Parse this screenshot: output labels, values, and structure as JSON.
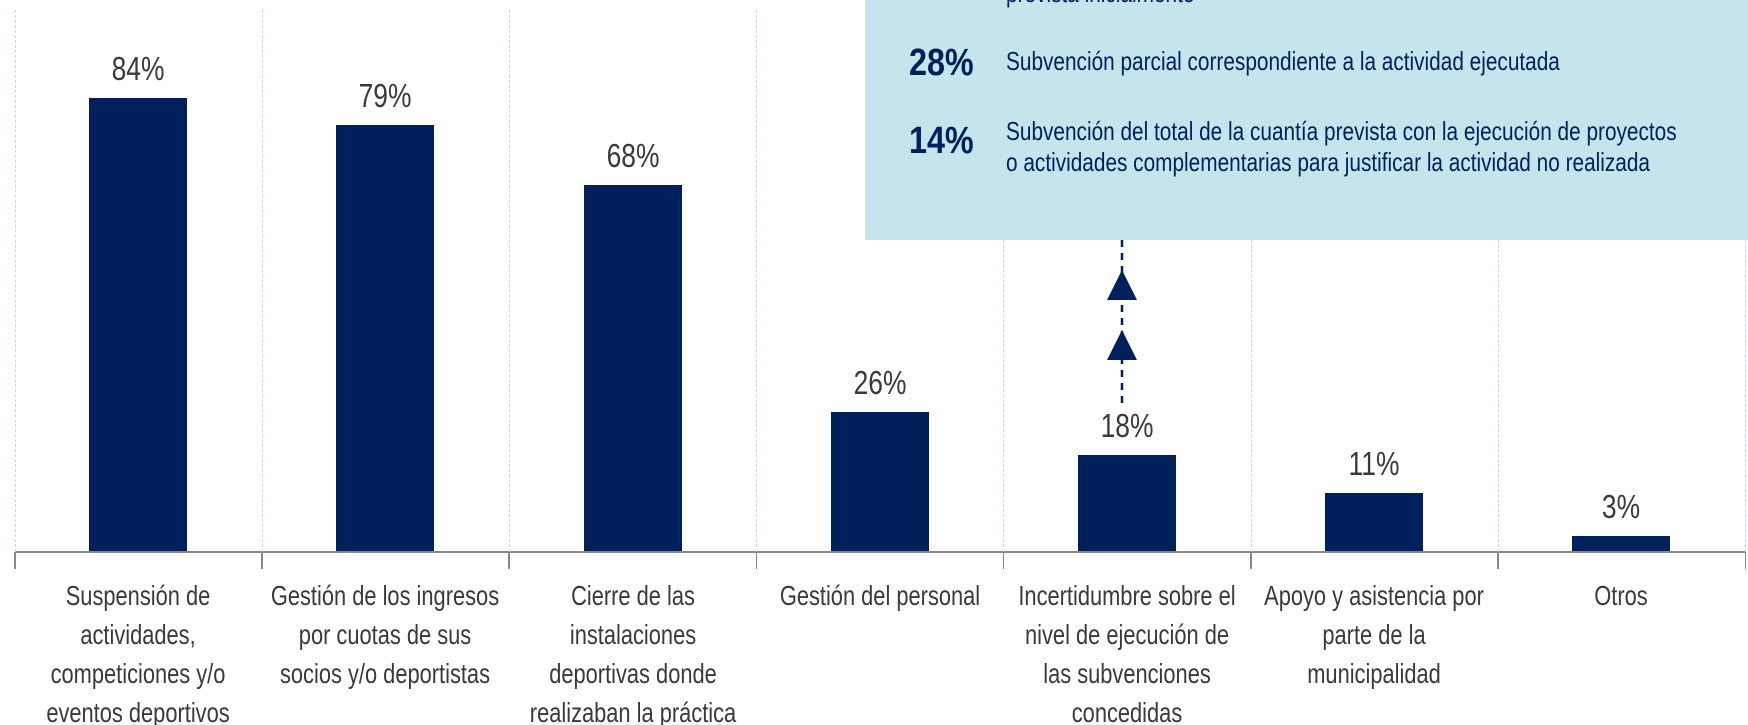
{
  "chart_data": {
    "type": "bar",
    "categories": [
      "Suspensión de\nactividades,\ncompeticiones y/o\neventos deportivos",
      "Gestión de los ingresos\npor cuotas de sus\nsocios y/o deportistas",
      "Cierre de las\ninstalaciones\ndeportivas donde\nrealizaban la práctica",
      "Gestión del personal",
      "Incertidumbre sobre el\nnivel de ejecución de\nlas subvenciones\nconcedidas",
      "Apoyo y asistencia por\nparte de la\nmunicipalidad",
      "Otros"
    ],
    "values": [
      84,
      79,
      68,
      26,
      18,
      11,
      3
    ],
    "value_labels": [
      "84%",
      "79%",
      "68%",
      "26%",
      "18%",
      "11%",
      "3%"
    ],
    "color": "#00205b",
    "ylim": [
      0,
      100
    ],
    "grid": true,
    "annotation": {
      "lead": "prevista inicialmente",
      "items": [
        {
          "value": "28%",
          "text": "Subvención parcial correspondiente a la actividad ejecutada"
        },
        {
          "value": "14%",
          "text": "Subvención del total de la cuantía prevista con la ejecución de proyectos\no actividades complementarias para justificar la actividad no realizada"
        }
      ]
    }
  }
}
